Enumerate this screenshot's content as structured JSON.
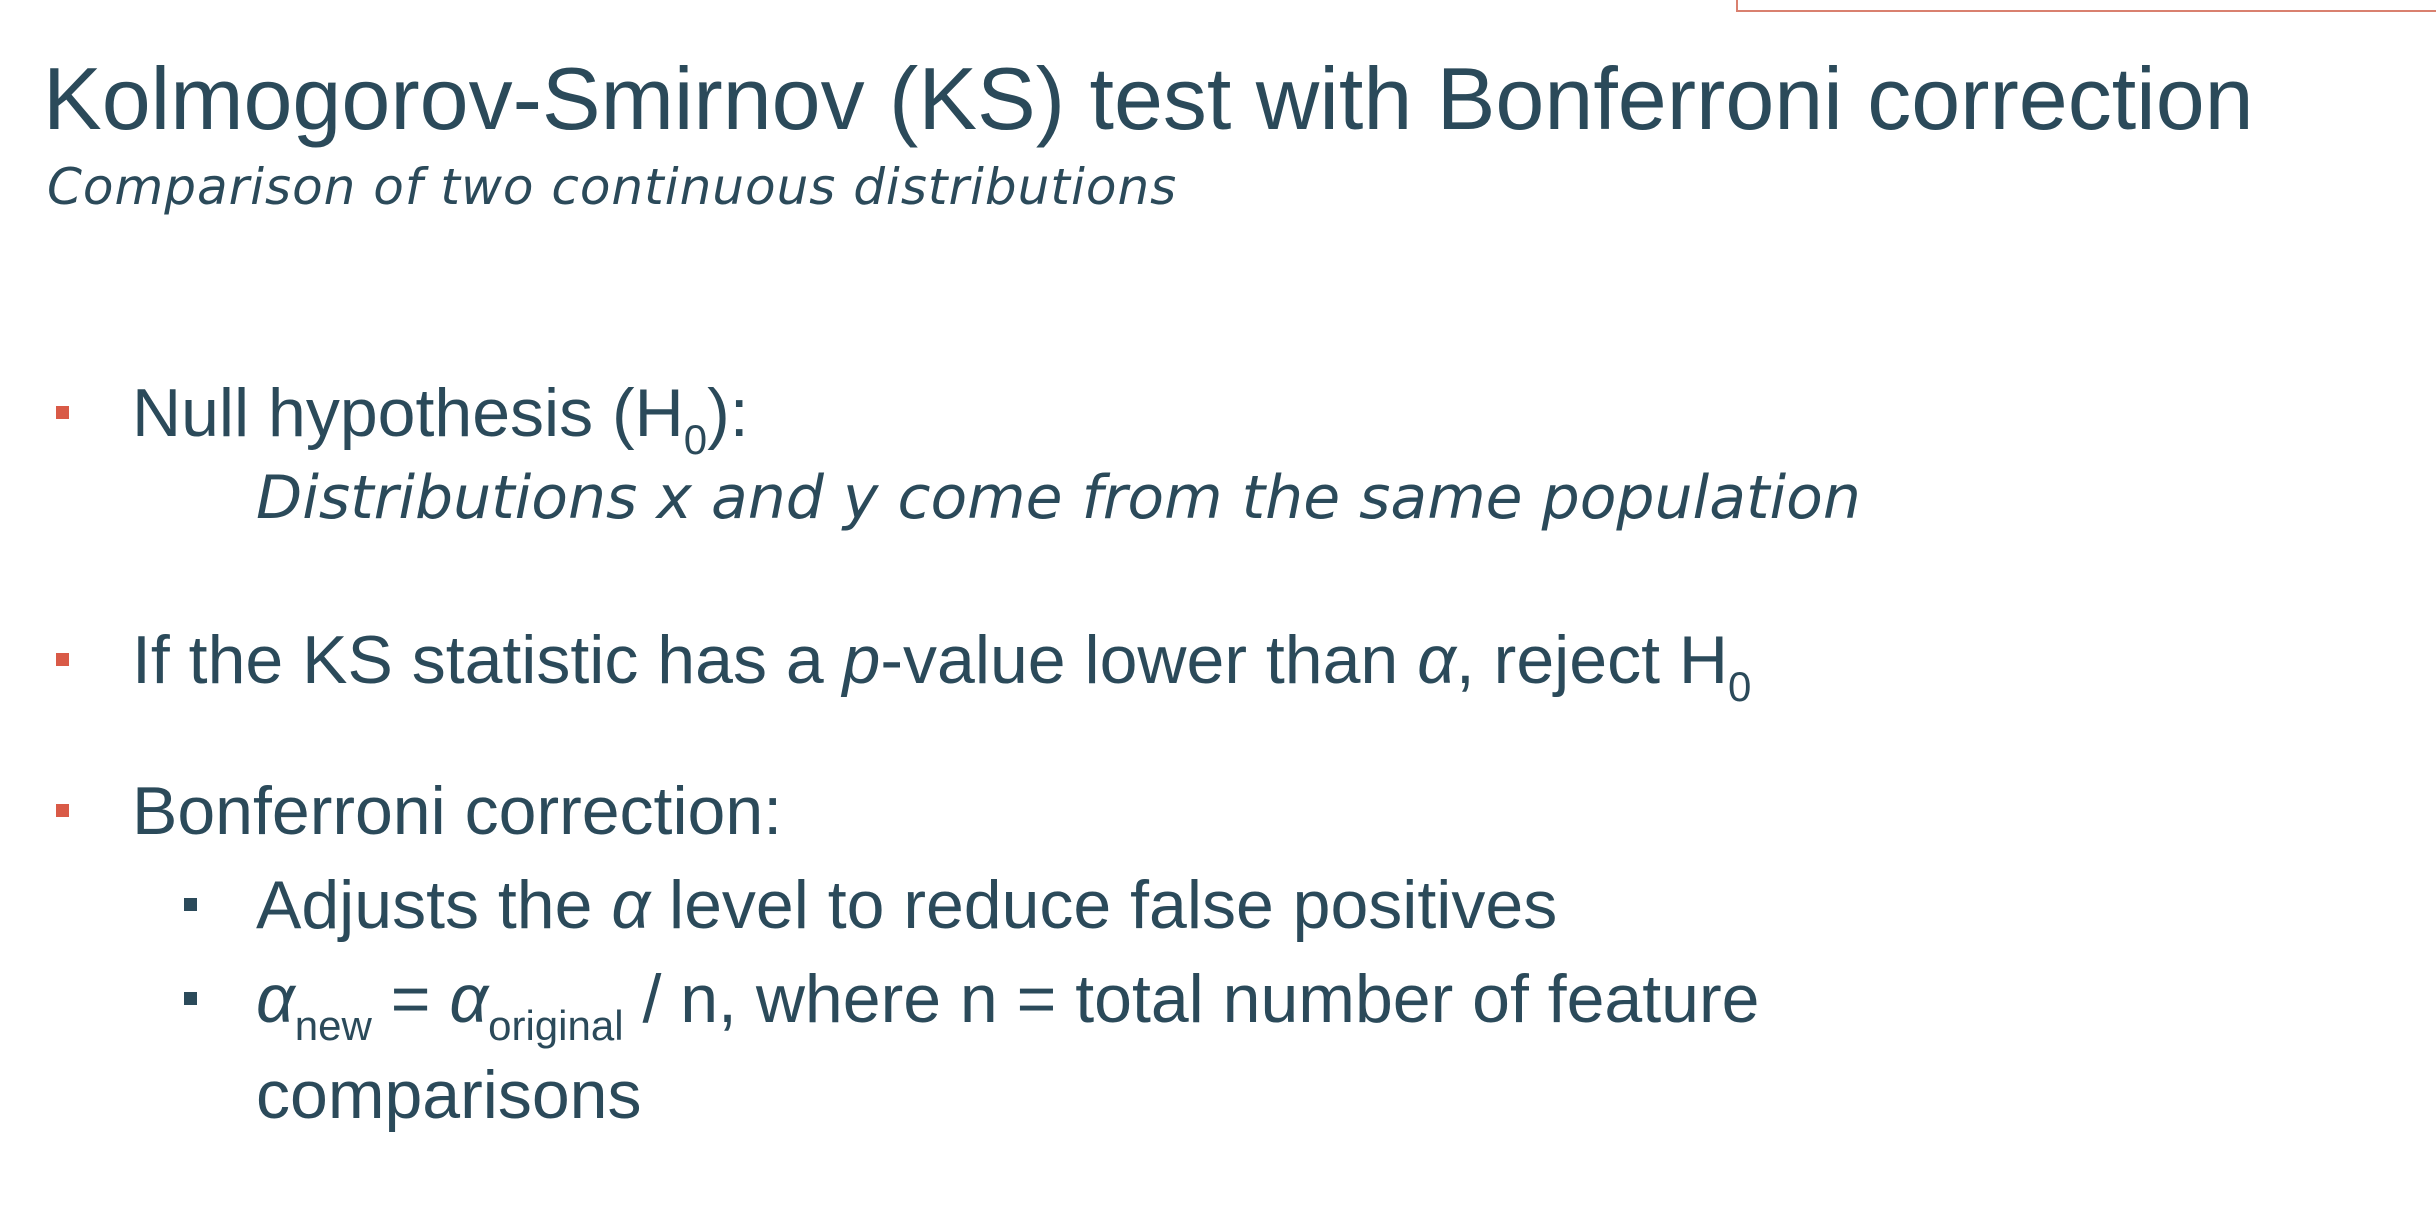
{
  "slide": {
    "title": "Kolmogorov-Smirnov (KS) test with Bonferroni correction",
    "subtitle": "Comparison of two continuous distributions",
    "bullets": [
      {
        "parts": [
          "Null hypothesis (H",
          "0",
          "):"
        ],
        "detail": "Distributions x and y come from the same population"
      },
      {
        "parts": [
          "If the KS statistic has a ",
          "p",
          "-value lower than ",
          "α",
          ", reject H",
          "0"
        ]
      },
      {
        "parts": [
          "Bonferroni correction:"
        ],
        "subbullets": [
          {
            "parts": [
              "Adjusts the ",
              "α",
              " level to reduce false positives"
            ]
          },
          {
            "parts": [
              "α",
              "new",
              " = ",
              "α",
              "original",
              " / n, where n = total number of feature comparisons"
            ]
          }
        ]
      }
    ]
  }
}
